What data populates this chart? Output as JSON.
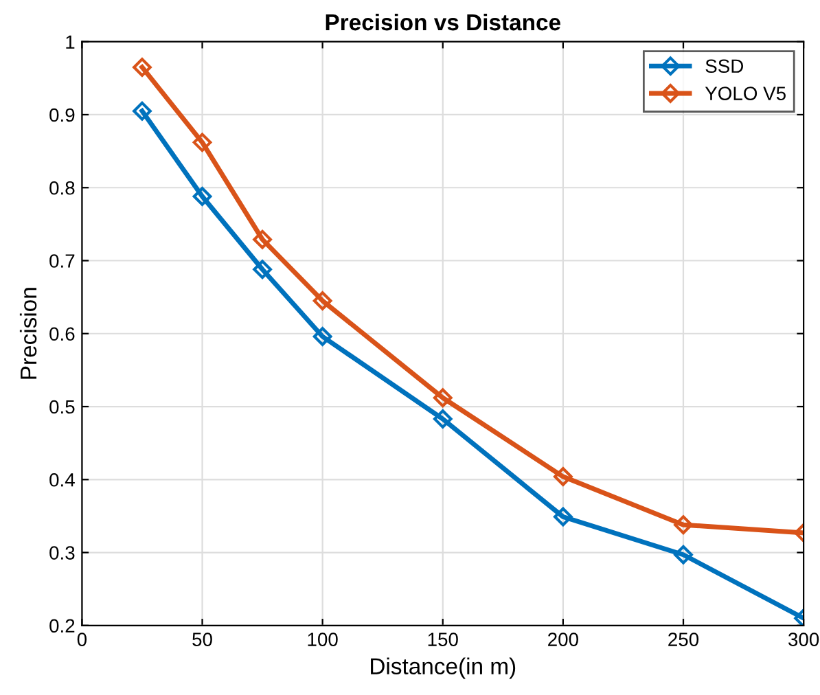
{
  "chart_data": {
    "type": "line",
    "title": "Precision vs Distance",
    "xlabel": "Distance(in m)",
    "ylabel": "Precision",
    "x": [
      25,
      50,
      75,
      100,
      150,
      200,
      250,
      300
    ],
    "series": [
      {
        "name": "SSD",
        "color": "#0072bd",
        "values": [
          0.905,
          0.788,
          0.688,
          0.596,
          0.483,
          0.349,
          0.297,
          0.21
        ]
      },
      {
        "name": "YOLO V5",
        "color": "#d95319",
        "values": [
          0.965,
          0.862,
          0.729,
          0.645,
          0.512,
          0.404,
          0.338,
          0.327
        ]
      }
    ],
    "xlim": [
      0,
      300
    ],
    "xticks": [
      0,
      50,
      100,
      150,
      200,
      250,
      300
    ],
    "ylim": [
      0.2,
      1
    ],
    "yticks": [
      0.2,
      0.3,
      0.4,
      0.5,
      0.6,
      0.7,
      0.8,
      0.9,
      1
    ],
    "grid": true,
    "legend": "top right",
    "marker": "diamond",
    "line_style": "solid"
  }
}
